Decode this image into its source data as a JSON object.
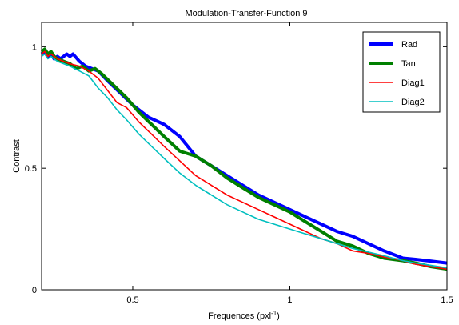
{
  "chart_data": {
    "type": "line",
    "title": "Modulation-Transfer-Function 9",
    "xlabel": "Frequences (pxl",
    "xlabel_sup": "-1",
    "xlabel_close": ")",
    "ylabel": "Contrast",
    "xlim": [
      0.21,
      1.5
    ],
    "ylim": [
      0,
      1.1
    ],
    "xticks": [
      0.5,
      1,
      1.5
    ],
    "xtick_labels": [
      "0.5",
      "1",
      "1.5"
    ],
    "yticks": [
      0,
      0.5,
      1
    ],
    "ytick_labels": [
      "0",
      "0.5",
      "1"
    ],
    "grid": false,
    "legend_position": "top-right",
    "series": [
      {
        "name": "Rad",
        "color": "#0000ff",
        "weight": "thick",
        "x": [
          0.21,
          0.22,
          0.23,
          0.24,
          0.25,
          0.26,
          0.27,
          0.28,
          0.29,
          0.3,
          0.31,
          0.33,
          0.35,
          0.37,
          0.39,
          0.42,
          0.46,
          0.5,
          0.55,
          0.6,
          0.65,
          0.7,
          0.75,
          0.8,
          0.85,
          0.9,
          0.95,
          1.0,
          1.05,
          1.1,
          1.15,
          1.2,
          1.25,
          1.3,
          1.36,
          1.4,
          1.45,
          1.5
        ],
        "y": [
          0.97,
          0.98,
          0.96,
          0.97,
          0.95,
          0.96,
          0.95,
          0.96,
          0.97,
          0.96,
          0.97,
          0.94,
          0.92,
          0.91,
          0.9,
          0.86,
          0.81,
          0.76,
          0.71,
          0.68,
          0.63,
          0.55,
          0.51,
          0.47,
          0.43,
          0.39,
          0.36,
          0.33,
          0.3,
          0.27,
          0.24,
          0.22,
          0.19,
          0.16,
          0.13,
          0.125,
          0.118,
          0.11
        ]
      },
      {
        "name": "Tan",
        "color": "#008000",
        "weight": "thick",
        "x": [
          0.21,
          0.22,
          0.23,
          0.24,
          0.25,
          0.26,
          0.28,
          0.3,
          0.32,
          0.34,
          0.36,
          0.38,
          0.4,
          0.44,
          0.48,
          0.52,
          0.56,
          0.6,
          0.65,
          0.7,
          0.75,
          0.8,
          0.85,
          0.9,
          0.95,
          1.0,
          1.05,
          1.1,
          1.15,
          1.2,
          1.25,
          1.3,
          1.36,
          1.4,
          1.45,
          1.5
        ],
        "y": [
          0.98,
          0.99,
          0.97,
          0.98,
          0.96,
          0.95,
          0.94,
          0.93,
          0.91,
          0.92,
          0.9,
          0.91,
          0.89,
          0.84,
          0.79,
          0.73,
          0.68,
          0.63,
          0.57,
          0.55,
          0.51,
          0.46,
          0.42,
          0.38,
          0.35,
          0.32,
          0.28,
          0.24,
          0.2,
          0.18,
          0.15,
          0.13,
          0.12,
          0.11,
          0.095,
          0.085
        ]
      },
      {
        "name": "Diag1",
        "color": "#ff0000",
        "weight": "thin",
        "x": [
          0.21,
          0.22,
          0.23,
          0.24,
          0.26,
          0.28,
          0.3,
          0.33,
          0.36,
          0.39,
          0.42,
          0.45,
          0.48,
          0.52,
          0.56,
          0.6,
          0.65,
          0.7,
          0.75,
          0.8,
          0.85,
          0.9,
          0.95,
          1.0,
          1.05,
          1.1,
          1.15,
          1.2,
          1.25,
          1.3,
          1.36,
          1.4,
          1.45,
          1.5
        ],
        "y": [
          0.97,
          0.98,
          0.96,
          0.97,
          0.95,
          0.94,
          0.93,
          0.92,
          0.9,
          0.87,
          0.82,
          0.77,
          0.75,
          0.69,
          0.64,
          0.59,
          0.53,
          0.47,
          0.43,
          0.39,
          0.36,
          0.33,
          0.3,
          0.27,
          0.24,
          0.21,
          0.19,
          0.16,
          0.15,
          0.135,
          0.12,
          0.105,
          0.095,
          0.085
        ]
      },
      {
        "name": "Diag2",
        "color": "#00bfbf",
        "weight": "thin",
        "x": [
          0.21,
          0.22,
          0.23,
          0.24,
          0.26,
          0.28,
          0.3,
          0.33,
          0.36,
          0.39,
          0.42,
          0.45,
          0.48,
          0.52,
          0.56,
          0.6,
          0.65,
          0.7,
          0.75,
          0.8,
          0.85,
          0.9,
          0.95,
          1.0,
          1.05,
          1.1,
          1.15,
          1.2,
          1.25,
          1.3,
          1.36,
          1.4,
          1.45,
          1.5
        ],
        "y": [
          0.96,
          0.97,
          0.95,
          0.96,
          0.94,
          0.93,
          0.92,
          0.9,
          0.88,
          0.83,
          0.79,
          0.74,
          0.7,
          0.64,
          0.59,
          0.54,
          0.48,
          0.43,
          0.39,
          0.35,
          0.32,
          0.29,
          0.27,
          0.25,
          0.23,
          0.21,
          0.19,
          0.17,
          0.155,
          0.14,
          0.12,
          0.11,
          0.1,
          0.09
        ]
      }
    ]
  }
}
